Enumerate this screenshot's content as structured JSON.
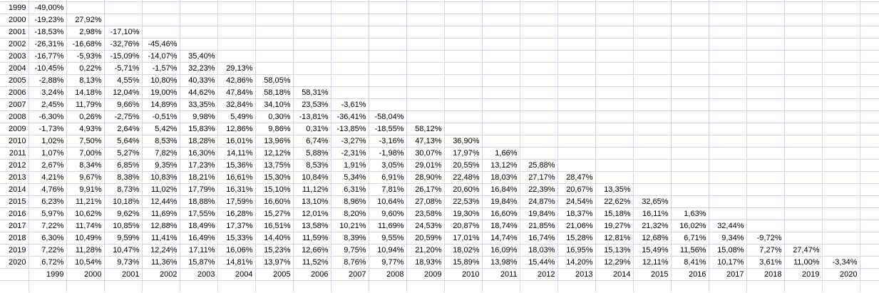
{
  "format": {
    "negative_color": "#e03131",
    "high_color": "#3333cc",
    "normal_color": "#000000",
    "gridline_color": "#d0d7e5",
    "background_color": "#ffffff",
    "high_threshold": 15
  },
  "matrix": {
    "row_years": [
      "1999",
      "2000",
      "2001",
      "2002",
      "2003",
      "2004",
      "2005",
      "2006",
      "2007",
      "2008",
      "2009",
      "2010",
      "2011",
      "2012",
      "2013",
      "2014",
      "2015",
      "2016",
      "2017",
      "2018",
      "2019",
      "2020"
    ],
    "footer_years": [
      "1999",
      "2000",
      "2001",
      "2002",
      "2003",
      "2004",
      "2005",
      "2006",
      "2007",
      "2008",
      "2009",
      "2010",
      "2011",
      "2012",
      "2013",
      "2014",
      "2015",
      "2016",
      "2017",
      "2018",
      "2019",
      "2020"
    ],
    "rows": [
      [
        "-49,00%"
      ],
      [
        "-19,23%",
        "27,92%"
      ],
      [
        "-18,53%",
        "2,98%",
        "-17,10%"
      ],
      [
        "-26,31%",
        "-16,68%",
        "-32,76%",
        "-45,46%"
      ],
      [
        "-16,77%",
        "-5,93%",
        "-15,09%",
        "-14,07%",
        "35,40%"
      ],
      [
        "-10,45%",
        "0,22%",
        "-5,71%",
        "-1,57%",
        "32,23%",
        "29,13%"
      ],
      [
        "-2,88%",
        "8,13%",
        "4,55%",
        "10,80%",
        "40,33%",
        "42,86%",
        "58,05%"
      ],
      [
        "3,24%",
        "14,18%",
        "12,04%",
        "19,00%",
        "44,62%",
        "47,84%",
        "58,18%",
        "58,31%"
      ],
      [
        "2,45%",
        "11,79%",
        "9,66%",
        "14,89%",
        "33,35%",
        "32,84%",
        "34,10%",
        "23,53%",
        "-3,61%"
      ],
      [
        "-6,30%",
        "0,26%",
        "-2,75%",
        "-0,51%",
        "9,98%",
        "5,49%",
        "0,30%",
        "-13,81%",
        "-36,41%",
        "-58,04%"
      ],
      [
        "-1,73%",
        "4,93%",
        "2,64%",
        "5,42%",
        "15,83%",
        "12,86%",
        "9,86%",
        "0,31%",
        "-13,85%",
        "-18,55%",
        "58,12%"
      ],
      [
        "1,02%",
        "7,50%",
        "5,64%",
        "8,53%",
        "18,28%",
        "16,01%",
        "13,96%",
        "6,74%",
        "-3,27%",
        "-3,16%",
        "47,13%",
        "36,90%"
      ],
      [
        "1,07%",
        "7,00%",
        "5,27%",
        "7,82%",
        "16,30%",
        "14,11%",
        "12,12%",
        "5,88%",
        "-2,31%",
        "-1,98%",
        "30,07%",
        "17,97%",
        "1,66%"
      ],
      [
        "2,67%",
        "8,34%",
        "6,85%",
        "9,35%",
        "17,23%",
        "15,36%",
        "13,75%",
        "8,53%",
        "1,91%",
        "3,05%",
        "29,01%",
        "20,55%",
        "13,12%",
        "25,88%"
      ],
      [
        "4,21%",
        "9,67%",
        "8,38%",
        "10,83%",
        "18,21%",
        "16,61%",
        "15,30%",
        "10,84%",
        "5,34%",
        "6,91%",
        "28,90%",
        "22,48%",
        "18,03%",
        "27,17%",
        "28,47%"
      ],
      [
        "4,76%",
        "9,91%",
        "8,73%",
        "11,02%",
        "17,79%",
        "16,31%",
        "15,10%",
        "11,12%",
        "6,31%",
        "7,81%",
        "26,17%",
        "20,60%",
        "16,84%",
        "22,39%",
        "20,67%",
        "13,35%"
      ],
      [
        "6,23%",
        "11,21%",
        "10,18%",
        "12,44%",
        "18,88%",
        "17,59%",
        "16,60%",
        "13,10%",
        "8,96%",
        "10,64%",
        "27,08%",
        "22,53%",
        "19,84%",
        "24,87%",
        "24,54%",
        "22,62%",
        "32,65%"
      ],
      [
        "5,97%",
        "10,62%",
        "9,62%",
        "11,69%",
        "17,55%",
        "16,28%",
        "15,27%",
        "12,01%",
        "8,20%",
        "9,60%",
        "23,58%",
        "19,30%",
        "16,60%",
        "19,84%",
        "18,37%",
        "15,18%",
        "16,11%",
        "1,63%"
      ],
      [
        "7,22%",
        "11,74%",
        "10,85%",
        "12,88%",
        "18,49%",
        "17,37%",
        "16,51%",
        "13,58%",
        "10,21%",
        "11,69%",
        "24,53%",
        "20,87%",
        "18,74%",
        "21,85%",
        "21,06%",
        "19,27%",
        "21,32%",
        "16,02%",
        "32,44%"
      ],
      [
        "6,30%",
        "10,49%",
        "9,59%",
        "11,41%",
        "16,49%",
        "15,33%",
        "14,40%",
        "11,59%",
        "8,39%",
        "9,55%",
        "20,59%",
        "17,01%",
        "14,74%",
        "16,74%",
        "15,28%",
        "12,81%",
        "12,68%",
        "6,71%",
        "9,34%",
        "-9,72%"
      ],
      [
        "7,22%",
        "11,28%",
        "10,47%",
        "12,24%",
        "17,11%",
        "16,06%",
        "15,23%",
        "12,66%",
        "9,75%",
        "10,94%",
        "21,20%",
        "18,02%",
        "16,09%",
        "18,03%",
        "16,95%",
        "15,13%",
        "15,49%",
        "11,56%",
        "15,08%",
        "7,27%",
        "27,47%"
      ],
      [
        "6,72%",
        "10,54%",
        "9,73%",
        "11,36%",
        "15,87%",
        "14,81%",
        "13,97%",
        "11,52%",
        "8,76%",
        "9,77%",
        "18,93%",
        "15,89%",
        "13,98%",
        "15,44%",
        "14,20%",
        "12,29%",
        "12,11%",
        "8,41%",
        "10,17%",
        "3,61%",
        "11,00%",
        "-3,34%"
      ]
    ]
  }
}
